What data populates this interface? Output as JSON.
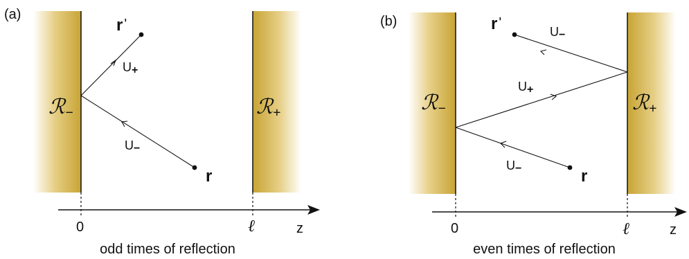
{
  "colors": {
    "mirror_gold": "#c8a434",
    "mirror_fade": "#ffffff",
    "ink": "#111111"
  },
  "panel_a": {
    "label": "(a)",
    "mirror_left": "ℛ",
    "mirror_left_sign": "−",
    "mirror_right": "ℛ",
    "mirror_right_sign": "+",
    "point_r_prime": "r",
    "point_r_prime_mark": "'",
    "point_r": "r",
    "u_plus": "U",
    "u_plus_sign": "+",
    "u_minus": "U",
    "u_minus_sign": "−",
    "tick_zero": "0",
    "tick_ell": "ℓ",
    "axis_label": "z",
    "caption": "odd times of reflection"
  },
  "panel_b": {
    "label": "(b)",
    "mirror_left": "ℛ",
    "mirror_left_sign": "−",
    "mirror_right": "ℛ",
    "mirror_right_sign": "+",
    "point_r_prime": "r",
    "point_r_prime_mark": "'",
    "point_r": "r",
    "u_minus_top": "U",
    "u_minus_top_sign": "−",
    "u_plus": "U",
    "u_plus_sign": "+",
    "u_minus_bottom": "U",
    "u_minus_bottom_sign": "−",
    "tick_zero": "0",
    "tick_ell": "ℓ",
    "axis_label": "z",
    "caption": "even times of reflection"
  }
}
